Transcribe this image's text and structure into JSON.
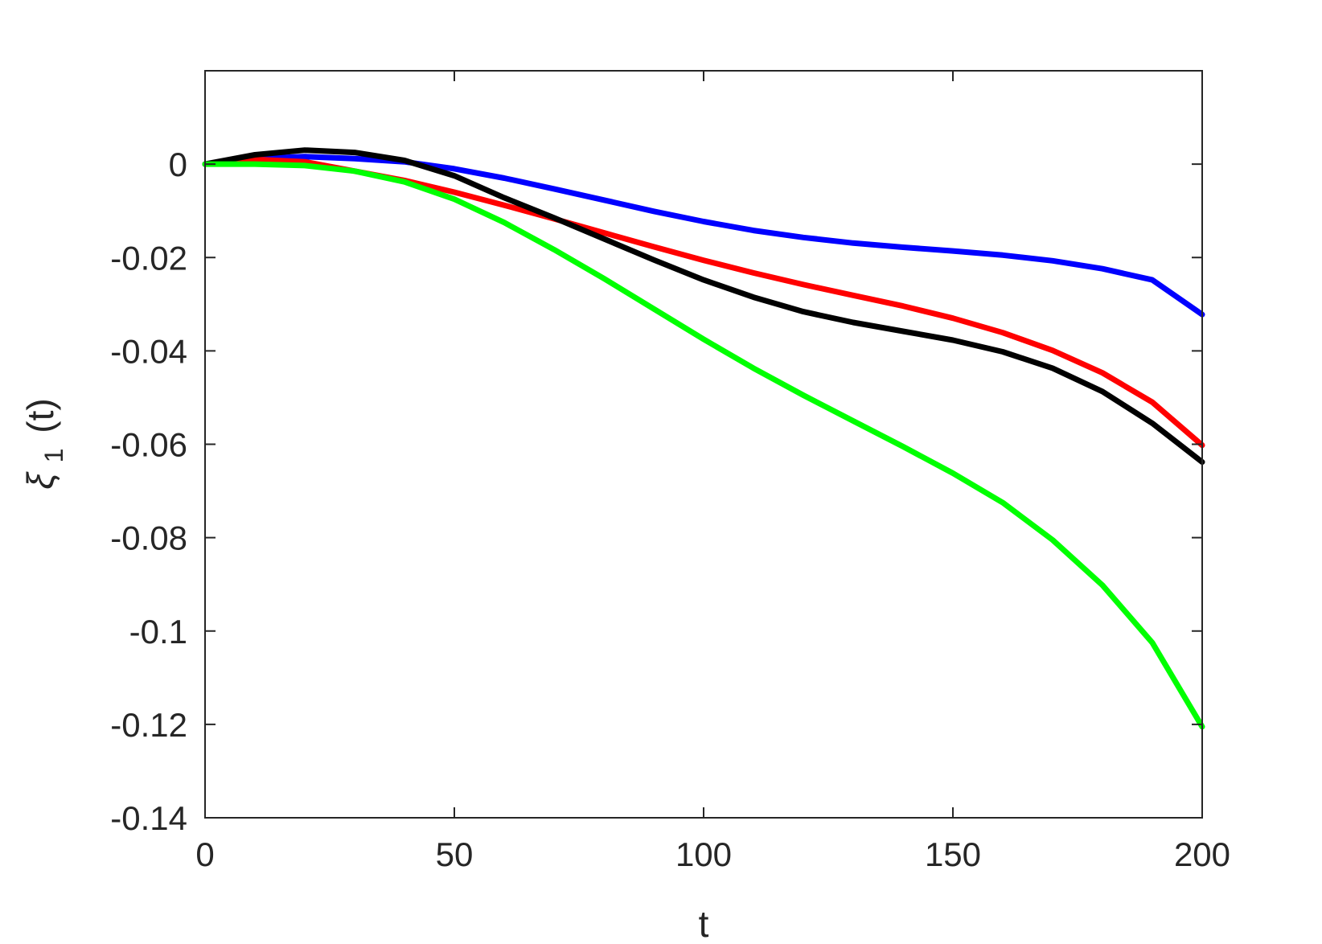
{
  "chart_data": {
    "type": "line",
    "title": "",
    "xlabel": "t",
    "ylabel": {
      "main": "ξ",
      "sub": "1",
      "suffix": "(t)"
    },
    "xlim": [
      0,
      200
    ],
    "ylim": [
      -0.14,
      0.02
    ],
    "xticks": [
      0,
      50,
      100,
      150,
      200
    ],
    "xtick_labels": [
      "0",
      "50",
      "100",
      "150",
      "200"
    ],
    "yticks": [
      0,
      -0.02,
      -0.04,
      -0.06,
      -0.08,
      -0.1,
      -0.12,
      -0.14
    ],
    "ytick_labels": [
      "0",
      "-0.02",
      "-0.04",
      "-0.06",
      "-0.08",
      "-0.1",
      "-0.12",
      "-0.14"
    ],
    "grid": false,
    "legend": "none",
    "series": [
      {
        "color": "#0000ff",
        "x": [
          0,
          10,
          20,
          30,
          40,
          50,
          60,
          70,
          80,
          90,
          100,
          110,
          120,
          130,
          140,
          150,
          160,
          170,
          180,
          190,
          200
        ],
        "y": [
          0,
          0.0012,
          0.0016,
          0.0012,
          0.0005,
          -0.001,
          -0.003,
          -0.0053,
          -0.0077,
          -0.0101,
          -0.0123,
          -0.0142,
          -0.0157,
          -0.0169,
          -0.0178,
          -0.0186,
          -0.0195,
          -0.0207,
          -0.0224,
          -0.0248,
          -0.0322
        ]
      },
      {
        "color": "#ff0000",
        "x": [
          0,
          10,
          20,
          30,
          40,
          50,
          60,
          70,
          80,
          90,
          100,
          110,
          120,
          130,
          140,
          150,
          160,
          170,
          180,
          190,
          200
        ],
        "y": [
          0,
          0.001,
          0.0005,
          -0.0015,
          -0.0035,
          -0.006,
          -0.0088,
          -0.0117,
          -0.0147,
          -0.0177,
          -0.0206,
          -0.0233,
          -0.0258,
          -0.0281,
          -0.0304,
          -0.033,
          -0.0361,
          -0.0399,
          -0.0447,
          -0.051,
          -0.0602
        ]
      },
      {
        "color": "#000000",
        "x": [
          0,
          10,
          20,
          30,
          40,
          50,
          60,
          70,
          80,
          90,
          100,
          110,
          120,
          130,
          140,
          150,
          160,
          170,
          180,
          190,
          200
        ],
        "y": [
          0,
          0.002,
          0.003,
          0.0025,
          0.0008,
          -0.0025,
          -0.0072,
          -0.0115,
          -0.016,
          -0.0205,
          -0.0248,
          -0.0285,
          -0.0316,
          -0.0339,
          -0.0358,
          -0.0377,
          -0.0402,
          -0.0437,
          -0.0487,
          -0.0555,
          -0.0638
        ]
      },
      {
        "color": "#00ff00",
        "x": [
          0,
          10,
          20,
          30,
          40,
          50,
          60,
          70,
          80,
          90,
          100,
          110,
          120,
          130,
          140,
          150,
          160,
          170,
          180,
          190,
          200
        ],
        "y": [
          0,
          0,
          -0.0003,
          -0.0015,
          -0.0038,
          -0.0075,
          -0.0125,
          -0.0183,
          -0.0245,
          -0.031,
          -0.0375,
          -0.0437,
          -0.0495,
          -0.055,
          -0.0605,
          -0.0662,
          -0.0725,
          -0.0805,
          -0.0902,
          -0.1025,
          -0.1205
        ]
      }
    ]
  }
}
